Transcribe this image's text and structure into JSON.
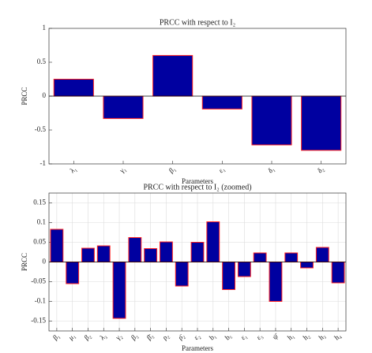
{
  "chart_data": [
    {
      "type": "bar",
      "title": "PRCC with respect to I₂",
      "x_label": "Parameters",
      "y_label": "PRCC",
      "categories": [
        "λ₁",
        "γ₁",
        "β₁",
        "ε₁",
        "δ₁",
        "δ₂"
      ],
      "values": [
        0.25,
        -0.33,
        0.6,
        -0.19,
        -0.72,
        -0.8
      ],
      "color": "#0000a0",
      "edge_color": "#ff2020",
      "ylim": [
        -1,
        1
      ],
      "yticks": [
        -1,
        -0.5,
        0,
        0.5,
        1
      ],
      "grid": false
    },
    {
      "type": "bar",
      "title": "PRCC with respect to I₂ (zoomed)",
      "x_label": "Parameters",
      "y_label": "PRCC",
      "categories": [
        "β₁",
        "μ₁",
        "β₂",
        "λ₃",
        "γ₂",
        "β₃",
        "β̄₃",
        "ρ₂",
        "ρ̄₂",
        "ε₂",
        "b₁",
        "b₅",
        "ε₁",
        "ε₃",
        "ψ̄",
        "h₁",
        "h₂",
        "h₃",
        "h₄"
      ],
      "values": [
        0.083,
        -0.055,
        0.035,
        0.041,
        -0.143,
        0.062,
        0.034,
        0.051,
        -0.061,
        0.05,
        0.102,
        -0.07,
        -0.037,
        0.023,
        -0.1,
        0.023,
        -0.015,
        0.037,
        -0.053
      ],
      "color": "#0000a0",
      "edge_color": "#ff2020",
      "ylim": [
        -0.175,
        0.175
      ],
      "yticks": [
        -0.15,
        -0.1,
        -0.05,
        0,
        0.05,
        0.1,
        0.15
      ],
      "grid": true
    }
  ]
}
